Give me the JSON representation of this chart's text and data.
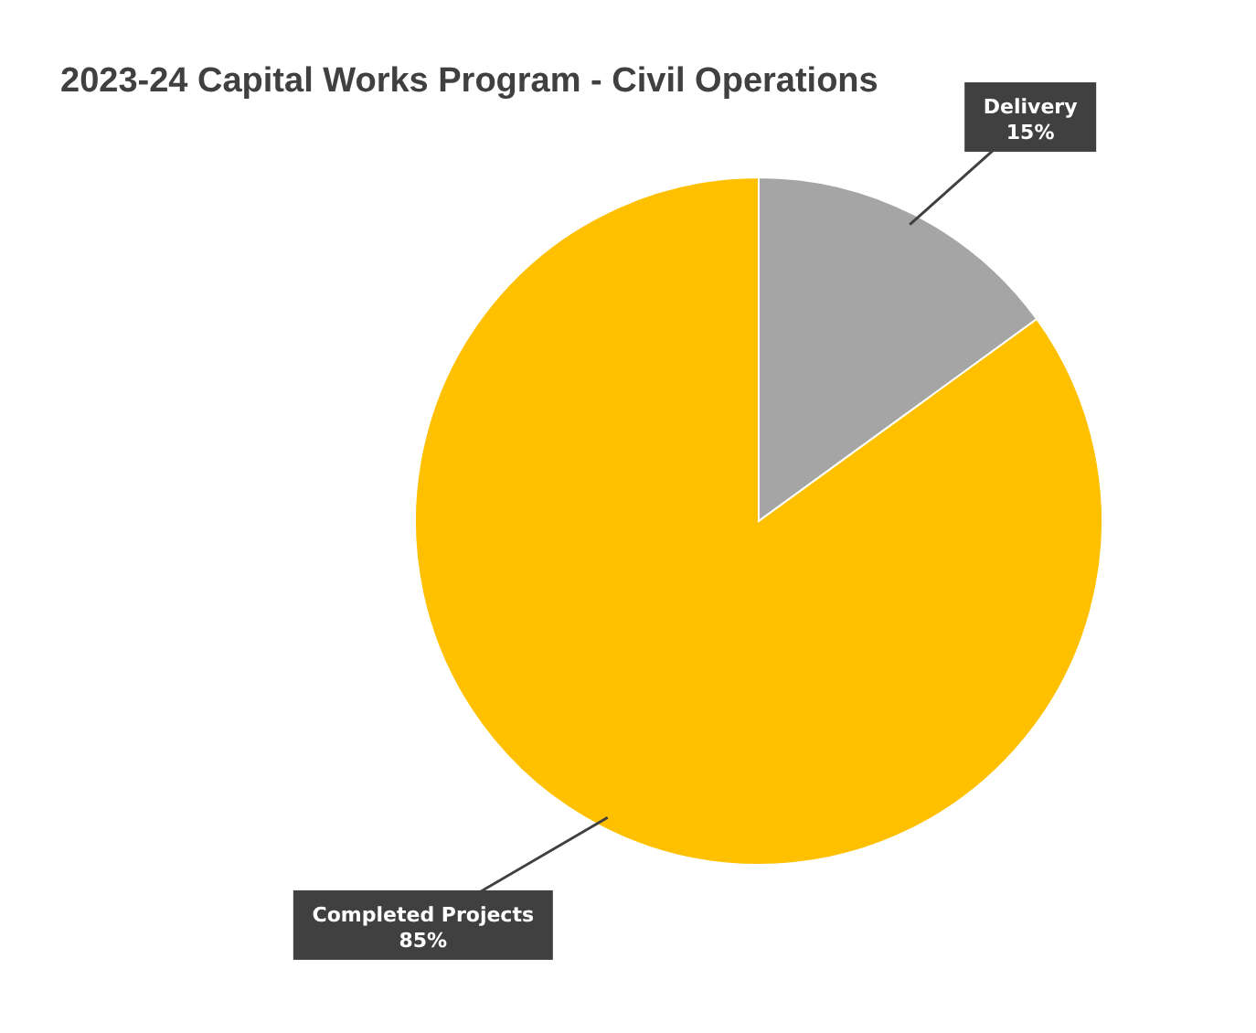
{
  "chart_data": {
    "type": "pie",
    "title": "2023-24 Capital Works Program - Civil Operations",
    "categories": [
      "Delivery",
      "Completed Projects"
    ],
    "values": [
      15,
      85
    ],
    "colors": [
      "#a5a5a5",
      "#ffc000"
    ],
    "value_labels": [
      "15%",
      "85%"
    ],
    "legend": false
  }
}
